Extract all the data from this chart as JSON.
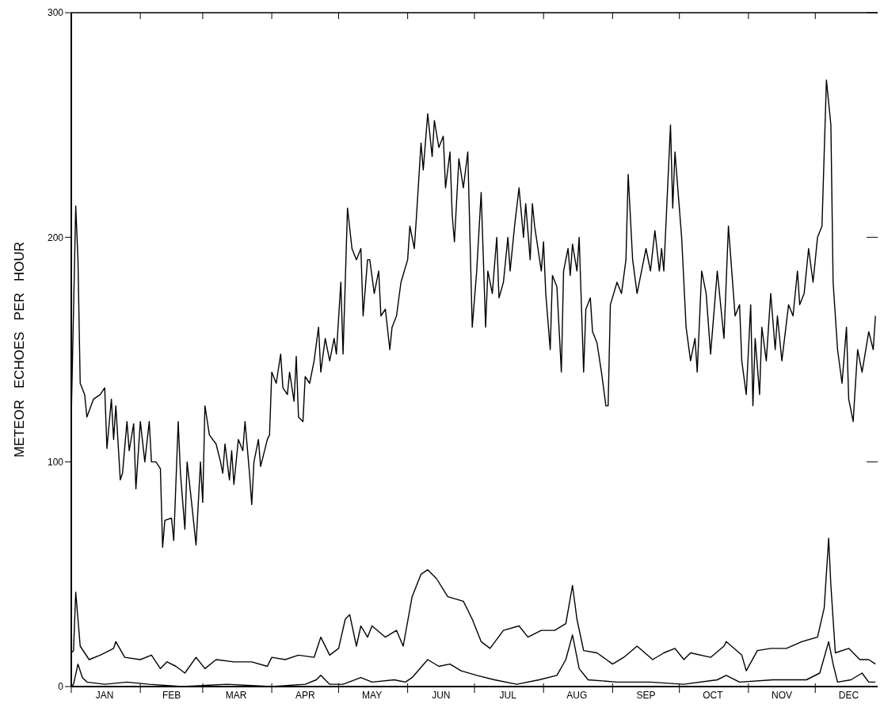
{
  "chart_data": {
    "type": "line",
    "ylabel": "METEOR   ECHOES   PER   HOUR",
    "xlim": [
      "--01-01",
      "--12-29"
    ],
    "ylim": [
      0,
      300
    ],
    "yticks": [
      0,
      100,
      200,
      300
    ],
    "xticks": [
      {
        "value": "--01-01",
        "label": null
      },
      {
        "value": "--01-16",
        "label": "JAN"
      },
      {
        "value": "--02-01",
        "label": null
      },
      {
        "value": "--02-15",
        "label": "FEB"
      },
      {
        "value": "--03-01",
        "label": null
      },
      {
        "value": "--03-16",
        "label": "MAR"
      },
      {
        "value": "--04-01",
        "label": null
      },
      {
        "value": "--04-16",
        "label": "APR"
      },
      {
        "value": "--05-01",
        "label": null
      },
      {
        "value": "--05-16",
        "label": "MAY"
      },
      {
        "value": "--06-01",
        "label": null
      },
      {
        "value": "--06-16",
        "label": "JUN"
      },
      {
        "value": "--07-01",
        "label": null
      },
      {
        "value": "--07-16",
        "label": "JUL"
      },
      {
        "value": "--08-01",
        "label": null
      },
      {
        "value": "--08-16",
        "label": "AUG"
      },
      {
        "value": "--09-01",
        "label": null
      },
      {
        "value": "--09-16",
        "label": "SEP"
      },
      {
        "value": "--10-01",
        "label": null
      },
      {
        "value": "--10-16",
        "label": "OCT"
      },
      {
        "value": "--11-01",
        "label": null
      },
      {
        "value": "--11-16",
        "label": "NOV"
      },
      {
        "value": "--12-01",
        "label": null
      },
      {
        "value": "--12-16",
        "label": "DEC"
      }
    ],
    "grid": false,
    "marker": "none",
    "line_style": "solid",
    "series": [
      {
        "color": "#000000",
        "x": [
          "--01-01",
          "--01-03",
          "--01-04",
          "--01-05",
          "--01-07",
          "--01-08",
          "--01-11",
          "--01-14",
          "--01-16",
          "--01-17",
          "--01-19",
          "--01-20",
          "--01-21",
          "--01-23",
          "--01-24",
          "--01-26",
          "--01-27",
          "--01-29",
          "--01-30",
          "--02-01",
          "--02-03",
          "--02-05",
          "--02-06",
          "--02-08",
          "--02-10",
          "--02-11",
          "--02-12",
          "--02-15",
          "--02-16",
          "--02-18",
          "--02-19",
          "--02-21",
          "--02-22",
          "--02-24",
          "--02-26",
          "--02-28",
          "--03-01",
          "--03-02",
          "--03-04",
          "--03-07",
          "--03-09",
          "--03-10",
          "--03-11",
          "--03-13",
          "--03-14",
          "--03-15",
          "--03-17",
          "--03-19",
          "--03-20",
          "--03-22",
          "--03-23",
          "--03-24",
          "--03-26",
          "--03-27",
          "--03-30",
          "--03-31",
          "--04-01",
          "--04-03",
          "--04-05",
          "--04-06",
          "--04-08",
          "--04-09",
          "--04-11",
          "--04-12",
          "--04-13",
          "--04-15",
          "--04-16",
          "--04-18",
          "--04-20",
          "--04-22",
          "--04-23",
          "--04-25",
          "--04-27",
          "--04-29",
          "--04-30",
          "--05-02",
          "--05-03",
          "--05-05",
          "--05-07",
          "--05-09",
          "--05-11",
          "--05-12",
          "--05-14",
          "--05-15",
          "--05-17",
          "--05-19",
          "--05-20",
          "--05-22",
          "--05-24",
          "--05-25",
          "--05-27",
          "--05-29",
          "--06-01",
          "--06-02",
          "--06-04",
          "--06-05",
          "--06-07",
          "--06-08",
          "--06-10",
          "--06-12",
          "--06-13",
          "--06-15",
          "--06-17",
          "--06-18",
          "--06-20",
          "--06-21",
          "--06-22",
          "--06-24",
          "--06-26",
          "--06-28",
          "--06-30",
          "--07-02",
          "--07-04",
          "--07-06",
          "--07-07",
          "--07-09",
          "--07-11",
          "--07-12",
          "--07-14",
          "--07-16",
          "--07-17",
          "--07-19",
          "--07-21",
          "--07-23",
          "--07-24",
          "--07-26",
          "--07-27",
          "--07-28",
          "--07-31",
          "--08-01",
          "--08-02",
          "--08-04",
          "--08-05",
          "--08-07",
          "--08-09",
          "--08-10",
          "--08-12",
          "--08-13",
          "--08-14",
          "--08-16",
          "--08-17",
          "--08-19",
          "--08-20",
          "--08-22",
          "--08-23",
          "--08-25",
          "--08-27",
          "--08-29",
          "--08-30",
          "--08-31",
          "--09-03",
          "--09-05",
          "--09-07",
          "--09-08",
          "--09-10",
          "--09-12",
          "--09-14",
          "--09-16",
          "--09-18",
          "--09-20",
          "--09-22",
          "--09-23",
          "--09-24",
          "--09-27",
          "--09-28",
          "--09-29",
          "--10-02",
          "--10-04",
          "--10-06",
          "--10-08",
          "--10-09",
          "--10-11",
          "--10-13",
          "--10-15",
          "--10-18",
          "--10-20",
          "--10-21",
          "--10-23",
          "--10-26",
          "--10-28",
          "--10-29",
          "--10-31",
          "--11-02",
          "--11-03",
          "--11-04",
          "--11-06",
          "--11-07",
          "--11-09",
          "--11-11",
          "--11-13",
          "--11-14",
          "--11-16",
          "--11-19",
          "--11-21",
          "--11-23",
          "--11-24",
          "--11-26",
          "--11-28",
          "--11-30",
          "--12-02",
          "--12-04",
          "--12-06",
          "--12-08",
          "--12-09",
          "--12-11",
          "--12-13",
          "--12-15",
          "--12-16",
          "--12-18",
          "--12-20",
          "--12-22",
          "--12-25",
          "--12-27",
          "--12-28"
        ],
        "values": [
          120,
          214,
          190,
          135,
          130,
          120,
          128,
          130,
          133,
          106,
          128,
          110,
          125,
          92,
          95,
          118,
          105,
          117,
          88,
          118,
          100,
          118,
          100,
          100,
          97,
          62,
          74,
          75,
          65,
          118,
          95,
          70,
          100,
          82,
          63,
          100,
          82,
          125,
          112,
          108,
          100,
          95,
          108,
          92,
          105,
          90,
          110,
          105,
          118,
          95,
          81,
          100,
          110,
          98,
          110,
          112,
          140,
          135,
          148,
          133,
          130,
          140,
          127,
          147,
          120,
          118,
          138,
          135,
          145,
          160,
          140,
          155,
          145,
          155,
          148,
          180,
          148,
          213,
          195,
          190,
          195,
          165,
          190,
          190,
          175,
          185,
          165,
          168,
          150,
          160,
          165,
          180,
          190,
          205,
          195,
          210,
          242,
          230,
          255,
          236,
          252,
          240,
          245,
          222,
          238,
          210,
          198,
          235,
          222,
          238,
          160,
          185,
          220,
          160,
          185,
          175,
          200,
          173,
          180,
          200,
          185,
          205,
          222,
          200,
          215,
          190,
          215,
          205,
          185,
          198,
          175,
          150,
          183,
          178,
          140,
          185,
          195,
          183,
          197,
          185,
          200,
          140,
          168,
          173,
          158,
          153,
          140,
          125,
          125,
          170,
          180,
          175,
          190,
          228,
          190,
          175,
          185,
          195,
          185,
          203,
          185,
          195,
          185,
          250,
          213,
          238,
          200,
          160,
          145,
          155,
          140,
          185,
          175,
          148,
          185,
          165,
          155,
          205,
          165,
          170,
          145,
          130,
          170,
          125,
          155,
          130,
          160,
          145,
          175,
          150,
          165,
          145,
          170,
          165,
          185,
          170,
          175,
          195,
          180,
          200,
          205,
          270,
          250,
          180,
          150,
          135,
          160,
          128,
          118,
          150,
          140,
          158,
          150,
          165
        ]
      },
      {
        "color": "#000000",
        "x": [
          "--01-01",
          "--01-02",
          "--01-03",
          "--01-05",
          "--01-09",
          "--01-14",
          "--01-20",
          "--01-21",
          "--01-25",
          "--02-01",
          "--02-06",
          "--02-10",
          "--02-13",
          "--02-17",
          "--02-21",
          "--02-26",
          "--03-02",
          "--03-07",
          "--03-15",
          "--03-23",
          "--03-30",
          "--04-01",
          "--04-07",
          "--04-13",
          "--04-20",
          "--04-23",
          "--04-27",
          "--05-01",
          "--05-04",
          "--05-06",
          "--05-09",
          "--05-11",
          "--05-14",
          "--05-16",
          "--05-22",
          "--05-27",
          "--05-30",
          "--06-03",
          "--06-07",
          "--06-10",
          "--06-14",
          "--06-19",
          "--06-26",
          "--06-30",
          "--07-02",
          "--07-04",
          "--07-08",
          "--07-14",
          "--07-21",
          "--07-25",
          "--07-31",
          "--08-06",
          "--08-11",
          "--08-14",
          "--08-16",
          "--08-19",
          "--08-25",
          "--09-01",
          "--09-06",
          "--09-12",
          "--09-19",
          "--09-24",
          "--09-29",
          "--10-03",
          "--10-06",
          "--10-15",
          "--10-21",
          "--10-22",
          "--10-29",
          "--10-31",
          "--11-05",
          "--11-11",
          "--11-18",
          "--11-25",
          "--12-02",
          "--12-05",
          "--12-07",
          "--12-08",
          "--12-10",
          "--12-16",
          "--12-21",
          "--12-25",
          "--12-28"
        ],
        "values": [
          15,
          16,
          42,
          18,
          12,
          14,
          17,
          20,
          13,
          12,
          14,
          8,
          11,
          9,
          6,
          13,
          8,
          12,
          11,
          11,
          9,
          13,
          12,
          14,
          13,
          22,
          14,
          17,
          30,
          32,
          18,
          27,
          22,
          27,
          22,
          25,
          18,
          40,
          50,
          52,
          48,
          40,
          38,
          30,
          25,
          20,
          17,
          25,
          27,
          22,
          25,
          25,
          28,
          45,
          30,
          16,
          15,
          10,
          13,
          18,
          12,
          15,
          17,
          12,
          15,
          13,
          18,
          20,
          14,
          7,
          16,
          17,
          17,
          20,
          22,
          35,
          66,
          45,
          15,
          17,
          12,
          12,
          10
        ]
      },
      {
        "color": "#000000",
        "x": [
          "--01-01",
          "--01-02",
          "--01-04",
          "--01-06",
          "--01-08",
          "--01-16",
          "--01-26",
          "--02-05",
          "--02-20",
          "--03-12",
          "--04-01",
          "--04-16",
          "--04-21",
          "--04-23",
          "--04-27",
          "--05-03",
          "--05-11",
          "--05-16",
          "--05-26",
          "--05-31",
          "--06-03",
          "--06-10",
          "--06-15",
          "--06-20",
          "--06-25",
          "--07-02",
          "--07-10",
          "--07-20",
          "--07-30",
          "--08-07",
          "--08-11",
          "--08-14",
          "--08-17",
          "--08-21",
          "--09-03",
          "--09-18",
          "--10-03",
          "--10-18",
          "--10-22",
          "--10-28",
          "--11-12",
          "--11-27",
          "--12-03",
          "--12-07",
          "--12-09",
          "--12-11",
          "--12-17",
          "--12-22",
          "--12-25",
          "--12-28"
        ],
        "values": [
          0,
          1,
          10,
          4,
          2,
          1,
          2,
          1,
          0,
          1,
          0,
          1,
          3,
          5,
          1,
          1,
          4,
          2,
          3,
          2,
          4,
          12,
          9,
          10,
          7,
          5,
          3,
          1,
          3,
          5,
          12,
          23,
          8,
          3,
          2,
          2,
          1,
          3,
          5,
          2,
          3,
          3,
          6,
          20,
          10,
          2,
          3,
          6,
          2,
          2
        ]
      }
    ]
  }
}
